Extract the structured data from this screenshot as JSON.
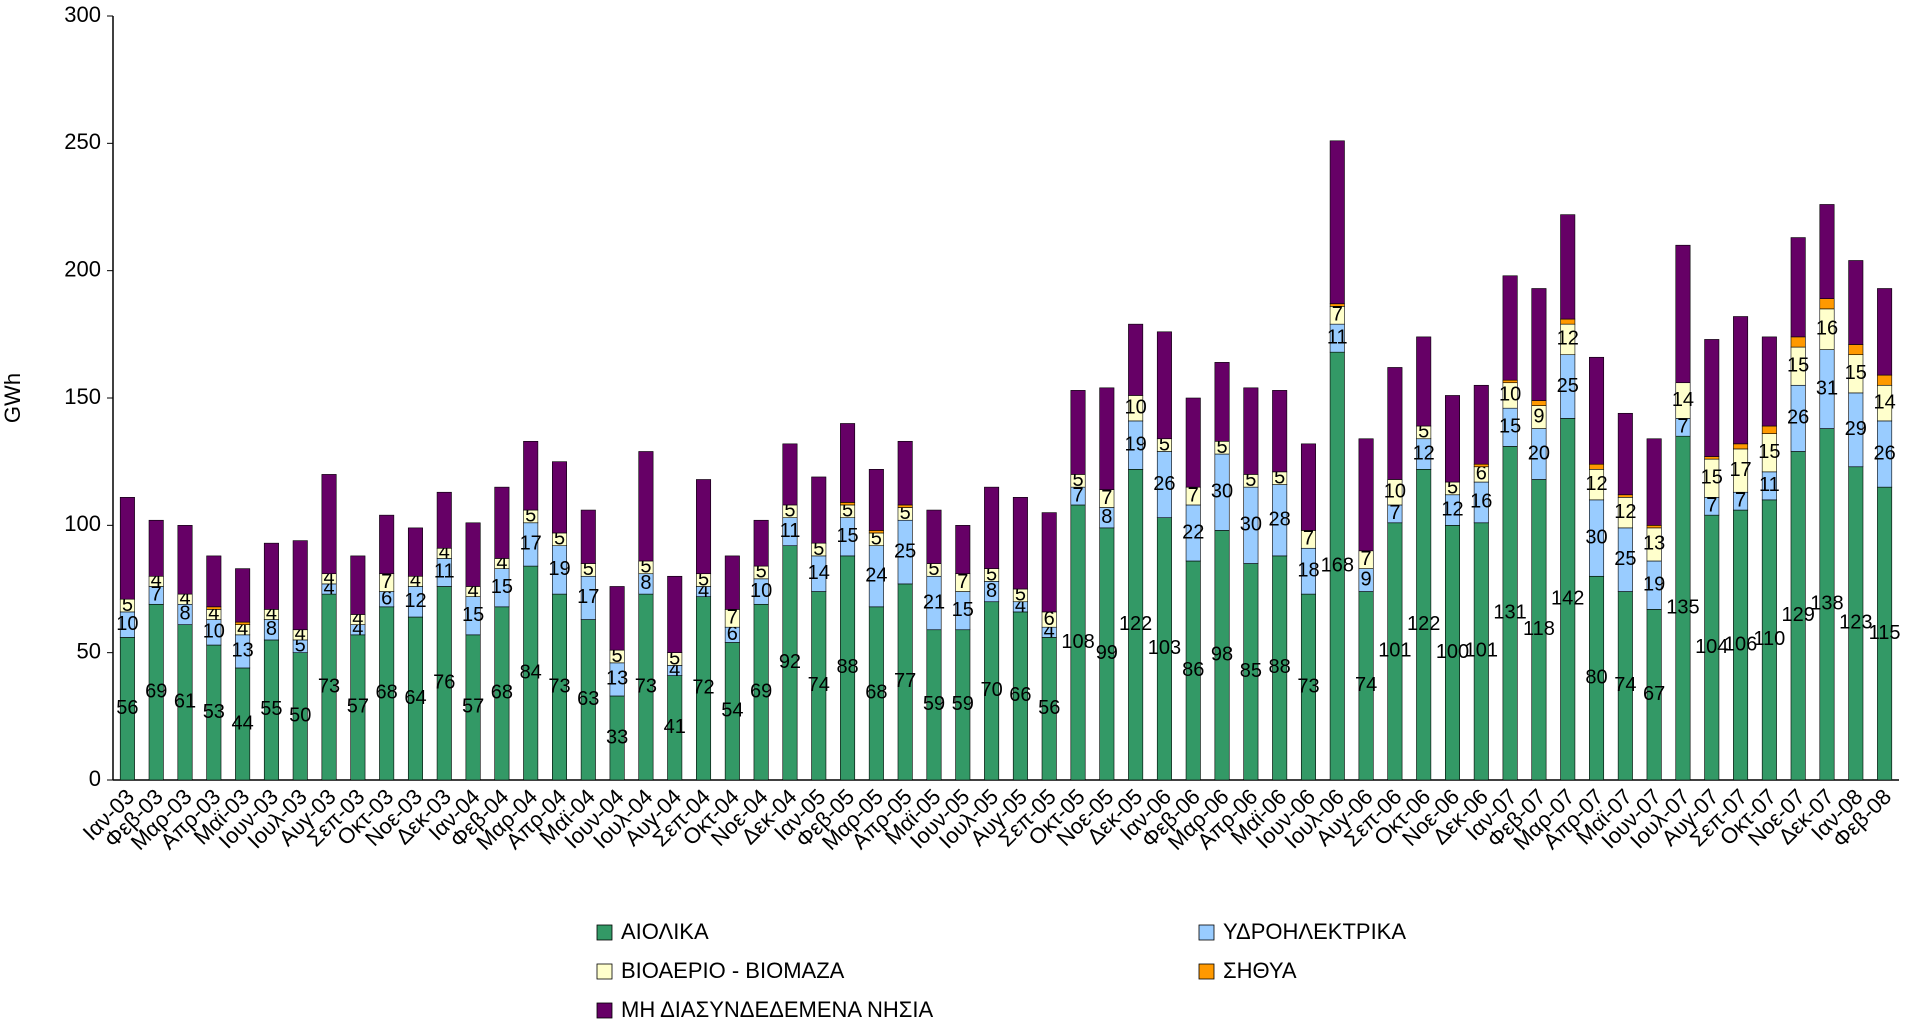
{
  "chart_data": {
    "type": "bar",
    "stacked": true,
    "y_label": "GWh",
    "categories": [
      "Ιαν-03",
      "Φεβ-03",
      "Μαρ-03",
      "Απρ-03",
      "Μαϊ-03",
      "Ιουν-03",
      "Ιουλ-03",
      "Αυγ-03",
      "Σεπ-03",
      "Οκτ-03",
      "Νοε-03",
      "Δεκ-03",
      "Ιαν-04",
      "Φεβ-04",
      "Μαρ-04",
      "Απρ-04",
      "Μαϊ-04",
      "Ιουν-04",
      "Ιουλ-04",
      "Αυγ-04",
      "Σεπ-04",
      "Οκτ-04",
      "Νοε-04",
      "Δεκ-04",
      "Ιαν-05",
      "Φεβ-05",
      "Μαρ-05",
      "Απρ-05",
      "Μαϊ-05",
      "Ιουν-05",
      "Ιουλ-05",
      "Αυγ-05",
      "Σεπ-05",
      "Οκτ-05",
      "Νοε-05",
      "Δεκ-05",
      "Ιαν-06",
      "Φεβ-06",
      "Μαρ-06",
      "Απρ-06",
      "Μαϊ-06",
      "Ιουν-06",
      "Ιουλ-06",
      "Αυγ-06",
      "Σεπ-06",
      "Οκτ-06",
      "Νοε-06",
      "Δεκ-06",
      "Ιαν-07",
      "Φεβ-07",
      "Μαρ-07",
      "Απρ-07",
      "Μαϊ-07",
      "Ιουν-07",
      "Ιουλ-07",
      "Αυγ-07",
      "Σεπ-07",
      "Οκτ-07",
      "Νοε-07",
      "Δεκ-07",
      "Ιαν-08",
      "Φεβ-08"
    ],
    "series": [
      {
        "name": "ΑΙΟΛΙΚΑ",
        "color": "#339966",
        "data_labels": true,
        "values": [
          56,
          69,
          61,
          53,
          44,
          55,
          50,
          73,
          57,
          68,
          64,
          76,
          57,
          68,
          84,
          73,
          63,
          33,
          73,
          41,
          72,
          54,
          69,
          92,
          74,
          88,
          68,
          77,
          59,
          59,
          70,
          66,
          56,
          108,
          99,
          122,
          103,
          86,
          98,
          85,
          88,
          73,
          168,
          74,
          101,
          122,
          100,
          101,
          131,
          118,
          142,
          80,
          74,
          67,
          135,
          104,
          106,
          110,
          129,
          138,
          123,
          115
        ]
      },
      {
        "name": "ΥΔΡΟΗΛΕΚΤΡΙΚΑ",
        "color": "#99ccff",
        "data_labels": true,
        "values": [
          10,
          7,
          8,
          10,
          13,
          8,
          5,
          4,
          4,
          6,
          12,
          11,
          15,
          15,
          17,
          19,
          17,
          13,
          8,
          4,
          4,
          6,
          10,
          11,
          14,
          15,
          24,
          25,
          21,
          15,
          8,
          4,
          4,
          7,
          8,
          19,
          26,
          22,
          30,
          30,
          28,
          18,
          11,
          9,
          7,
          12,
          12,
          16,
          15,
          20,
          25,
          30,
          25,
          19,
          7,
          7,
          7,
          11,
          26,
          31,
          29,
          26
        ]
      },
      {
        "name": "ΒΙΟΑΕΡΙΟ - ΒΙΟΜΑΖΑ",
        "color": "#ffffcc",
        "data_labels": true,
        "values": [
          5,
          4,
          4,
          4,
          4,
          4,
          4,
          4,
          4,
          7,
          4,
          4,
          4,
          4,
          5,
          5,
          5,
          5,
          5,
          5,
          5,
          7,
          5,
          5,
          5,
          5,
          5,
          5,
          5,
          7,
          5,
          5,
          6,
          5,
          7,
          10,
          5,
          7,
          5,
          5,
          5,
          7,
          7,
          7,
          10,
          5,
          5,
          6,
          10,
          9,
          12,
          12,
          12,
          13,
          14,
          15,
          17,
          15,
          15,
          16,
          15,
          14
        ]
      },
      {
        "name": "ΣΗΘΥΑ",
        "color": "#ff9900",
        "data_labels": false,
        "values": [
          0,
          0,
          0,
          1,
          1,
          0,
          0,
          0,
          0,
          0,
          0,
          0,
          0,
          0,
          0,
          0,
          0,
          0,
          0,
          0,
          0,
          0,
          0,
          0,
          0,
          1,
          1,
          1,
          0,
          0,
          0,
          0,
          0,
          0,
          0,
          0,
          0,
          0,
          0,
          0,
          0,
          0,
          1,
          0,
          0,
          0,
          0,
          1,
          1,
          2,
          2,
          2,
          1,
          1,
          0,
          1,
          2,
          3,
          4,
          4,
          4,
          4
        ]
      },
      {
        "name": "ΜΗ ΔΙΑΣΥΝΔΕΔΕΜΕΝΑ ΝΗΣΙΑ",
        "color": "#660066",
        "data_labels": false,
        "values": [
          40,
          22,
          27,
          20,
          21,
          26,
          35,
          39,
          23,
          23,
          19,
          22,
          25,
          28,
          27,
          28,
          21,
          25,
          43,
          30,
          37,
          21,
          18,
          24,
          26,
          31,
          24,
          25,
          21,
          19,
          32,
          36,
          39,
          33,
          40,
          28,
          42,
          35,
          31,
          34,
          32,
          34,
          64,
          44,
          44,
          35,
          34,
          31,
          41,
          44,
          41,
          42,
          32,
          34,
          54,
          46,
          50,
          35,
          39,
          37,
          33,
          34
        ]
      }
    ],
    "ylim": [
      0,
      300
    ],
    "yticks": [
      0,
      50,
      100,
      150,
      200,
      250,
      300
    ],
    "grid": false,
    "legend": "bottom"
  }
}
